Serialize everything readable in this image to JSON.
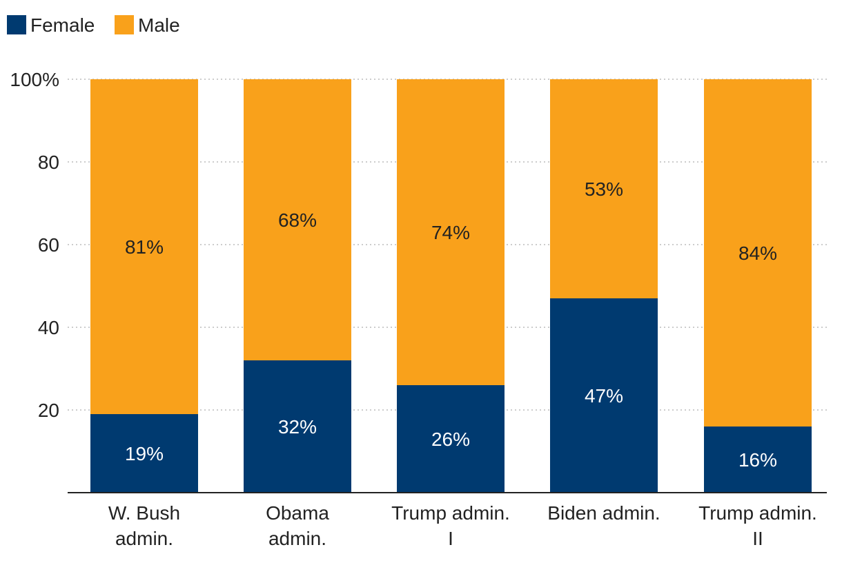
{
  "colors": {
    "female": "#003a70",
    "male": "#f9a11b",
    "grid": "#bbbbbb",
    "axis": "#222222",
    "label_on_female": "#ffffff",
    "label_on_male": "#222222"
  },
  "chart_data": {
    "type": "bar",
    "stacked": true,
    "title": "",
    "xlabel": "",
    "ylabel": "",
    "ylim": [
      0,
      100
    ],
    "yticks": [
      20,
      40,
      60,
      80,
      100
    ],
    "ytick_labels": [
      "20",
      "40",
      "60",
      "80",
      "100%"
    ],
    "grid": true,
    "legend_position": "top-left",
    "categories": [
      [
        "W. Bush",
        "admin."
      ],
      [
        "Obama",
        "admin."
      ],
      [
        "Trump admin.",
        "I"
      ],
      [
        "Biden admin."
      ],
      [
        "Trump admin.",
        "II"
      ]
    ],
    "series": [
      {
        "name": "Female",
        "color": "#003a70",
        "values": [
          19,
          32,
          26,
          47,
          16
        ],
        "labels": [
          "19%",
          "32%",
          "26%",
          "47%",
          "16%"
        ]
      },
      {
        "name": "Male",
        "color": "#f9a11b",
        "values": [
          81,
          68,
          74,
          53,
          84
        ],
        "labels": [
          "81%",
          "68%",
          "74%",
          "53%",
          "84%"
        ]
      }
    ]
  }
}
